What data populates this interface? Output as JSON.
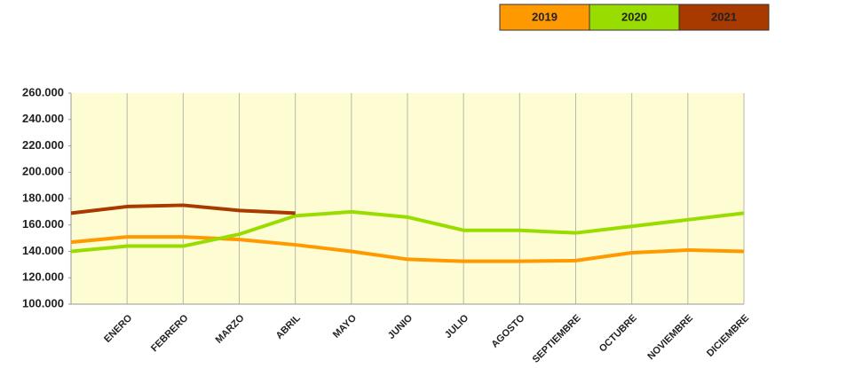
{
  "chart_data": {
    "type": "line",
    "categories": [
      null,
      "ENERO",
      "FEBRERO",
      "MARZO",
      "ABRIL",
      "MAYO",
      "JUNIO",
      "JULIO",
      "AGOSTO",
      "SEPTIEMBRE",
      "OCTUBRE",
      "NOVIEMBRE",
      "DICIEMBRE"
    ],
    "series": [
      {
        "name": "2019",
        "color": "#ff9900",
        "values": [
          147000,
          151000,
          151000,
          149000,
          145000,
          140000,
          134000,
          132500,
          132500,
          133000,
          139000,
          141000,
          140000
        ]
      },
      {
        "name": "2020",
        "color": "#99dd00",
        "values": [
          140000,
          144000,
          144000,
          153000,
          167000,
          170000,
          166000,
          156000,
          156000,
          154000,
          159000,
          164000,
          169000
        ]
      },
      {
        "name": "2021",
        "color": "#a83a00",
        "values": [
          169000,
          174000,
          175000,
          171000,
          169000,
          null,
          null,
          null,
          null,
          null,
          null,
          null,
          null
        ]
      }
    ],
    "ylim": [
      100000,
      260000
    ],
    "yticks": [
      {
        "value": 100000,
        "label": "100.000"
      },
      {
        "value": 120000,
        "label": "120.000"
      },
      {
        "value": 140000,
        "label": "140.000"
      },
      {
        "value": 160000,
        "label": "160.000"
      },
      {
        "value": 180000,
        "label": "180.000"
      },
      {
        "value": 200000,
        "label": "200.000"
      },
      {
        "value": 220000,
        "label": "220.000"
      },
      {
        "value": 240000,
        "label": "240.000"
      },
      {
        "value": 260000,
        "label": "260.000"
      }
    ],
    "legend": "top-right"
  }
}
